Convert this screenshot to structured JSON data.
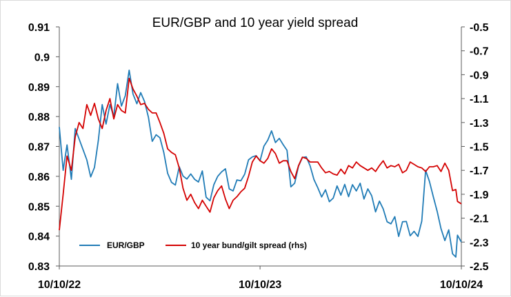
{
  "chart_data": {
    "type": "line",
    "title": "EUR/GBP and 10 year yield spread",
    "xlabel": "",
    "ylabel": "",
    "x_tick_labels": [
      "10/10/22",
      "10/10/23",
      "10/10/24"
    ],
    "x_range": [
      "2022-10-10",
      "2024-10-10"
    ],
    "y_left": {
      "min": 0.83,
      "max": 0.91,
      "ticks": [
        "0.91",
        "0.9",
        "0.89",
        "0.88",
        "0.87",
        "0.86",
        "0.85",
        "0.84",
        "0.83"
      ]
    },
    "y_right": {
      "min": -2.5,
      "max": -0.5,
      "ticks": [
        "-0.5",
        "-0.7",
        "-0.9",
        "-1.1",
        "-1.3",
        "-1.5",
        "-1.7",
        "-1.9",
        "-2.1",
        "-2.3",
        "-2.5"
      ]
    },
    "grid": false,
    "legend_position": "bottom-left",
    "series": [
      {
        "name": "EUR/GBP",
        "axis": "left",
        "color": "#1f7bb6",
        "points": [
          [
            "2022-10-10",
            0.8765
          ],
          [
            "2022-10-17",
            0.862
          ],
          [
            "2022-10-24",
            0.8705
          ],
          [
            "2022-11-01",
            0.859
          ],
          [
            "2022-11-08",
            0.876
          ],
          [
            "2022-11-15",
            0.8725
          ],
          [
            "2022-11-22",
            0.869
          ],
          [
            "2022-11-29",
            0.8655
          ],
          [
            "2022-12-06",
            0.8598
          ],
          [
            "2022-12-13",
            0.863
          ],
          [
            "2022-12-20",
            0.872
          ],
          [
            "2022-12-27",
            0.884
          ],
          [
            "2023-01-03",
            0.8775
          ],
          [
            "2023-01-10",
            0.884
          ],
          [
            "2023-01-17",
            0.88
          ],
          [
            "2023-01-24",
            0.891
          ],
          [
            "2023-01-31",
            0.8835
          ],
          [
            "2023-02-07",
            0.887
          ],
          [
            "2023-02-14",
            0.8955
          ],
          [
            "2023-02-21",
            0.8875
          ],
          [
            "2023-02-28",
            0.8843
          ],
          [
            "2023-03-07",
            0.888
          ],
          [
            "2023-03-14",
            0.885
          ],
          [
            "2023-03-21",
            0.8798
          ],
          [
            "2023-03-28",
            0.8717
          ],
          [
            "2023-04-04",
            0.8739
          ],
          [
            "2023-04-11",
            0.8729
          ],
          [
            "2023-04-18",
            0.868
          ],
          [
            "2023-04-25",
            0.861
          ],
          [
            "2023-05-02",
            0.858
          ],
          [
            "2023-05-09",
            0.8571
          ],
          [
            "2023-05-16",
            0.8632
          ],
          [
            "2023-05-23",
            0.8601
          ],
          [
            "2023-05-30",
            0.8591
          ],
          [
            "2023-06-06",
            0.8608
          ],
          [
            "2023-06-13",
            0.859
          ],
          [
            "2023-06-20",
            0.8581
          ],
          [
            "2023-06-27",
            0.8618
          ],
          [
            "2023-07-04",
            0.853
          ],
          [
            "2023-07-11",
            0.8518
          ],
          [
            "2023-07-18",
            0.8572
          ],
          [
            "2023-07-25",
            0.86
          ],
          [
            "2023-08-01",
            0.8615
          ],
          [
            "2023-08-08",
            0.8625
          ],
          [
            "2023-08-15",
            0.8558
          ],
          [
            "2023-08-22",
            0.8551
          ],
          [
            "2023-08-29",
            0.8588
          ],
          [
            "2023-09-05",
            0.8585
          ],
          [
            "2023-09-12",
            0.8607
          ],
          [
            "2023-09-19",
            0.8655
          ],
          [
            "2023-09-26",
            0.8665
          ],
          [
            "2023-10-03",
            0.8669
          ],
          [
            "2023-10-10",
            0.8652
          ],
          [
            "2023-10-17",
            0.8701
          ],
          [
            "2023-10-24",
            0.8721
          ],
          [
            "2023-10-31",
            0.8752
          ],
          [
            "2023-11-07",
            0.8713
          ],
          [
            "2023-11-14",
            0.8727
          ],
          [
            "2023-11-21",
            0.8706
          ],
          [
            "2023-11-28",
            0.8687
          ],
          [
            "2023-12-05",
            0.8565
          ],
          [
            "2023-12-12",
            0.8577
          ],
          [
            "2023-12-19",
            0.8634
          ],
          [
            "2023-12-26",
            0.8663
          ],
          [
            "2024-01-02",
            0.8665
          ],
          [
            "2024-01-09",
            0.8635
          ],
          [
            "2024-01-16",
            0.8589
          ],
          [
            "2024-01-23",
            0.8562
          ],
          [
            "2024-01-30",
            0.8531
          ],
          [
            "2024-02-06",
            0.8555
          ],
          [
            "2024-02-13",
            0.8515
          ],
          [
            "2024-02-20",
            0.8527
          ],
          [
            "2024-02-27",
            0.8568
          ],
          [
            "2024-03-05",
            0.8537
          ],
          [
            "2024-03-12",
            0.8573
          ],
          [
            "2024-03-19",
            0.8532
          ],
          [
            "2024-03-26",
            0.8572
          ],
          [
            "2024-04-02",
            0.8551
          ],
          [
            "2024-04-09",
            0.8577
          ],
          [
            "2024-04-16",
            0.8524
          ],
          [
            "2024-04-23",
            0.8558
          ],
          [
            "2024-04-30",
            0.8535
          ],
          [
            "2024-05-07",
            0.8481
          ],
          [
            "2024-05-14",
            0.8517
          ],
          [
            "2024-05-21",
            0.8491
          ],
          [
            "2024-05-28",
            0.8448
          ],
          [
            "2024-06-04",
            0.8441
          ],
          [
            "2024-06-11",
            0.8465
          ],
          [
            "2024-06-18",
            0.8399
          ],
          [
            "2024-06-25",
            0.8448
          ],
          [
            "2024-07-02",
            0.8449
          ],
          [
            "2024-07-09",
            0.8401
          ],
          [
            "2024-07-16",
            0.8416
          ],
          [
            "2024-07-23",
            0.8399
          ],
          [
            "2024-07-30",
            0.845
          ],
          [
            "2024-08-06",
            0.862
          ],
          [
            "2024-08-13",
            0.8583
          ],
          [
            "2024-08-20",
            0.8532
          ],
          [
            "2024-08-27",
            0.8483
          ],
          [
            "2024-09-03",
            0.8425
          ],
          [
            "2024-09-10",
            0.8385
          ],
          [
            "2024-09-17",
            0.8421
          ],
          [
            "2024-09-24",
            0.8341
          ],
          [
            "2024-09-30",
            0.833
          ],
          [
            "2024-10-03",
            0.8403
          ],
          [
            "2024-10-10",
            0.838
          ]
        ]
      },
      {
        "name": "10 year bund/gilt spread (rhs)",
        "axis": "right",
        "color": "#d40000",
        "points": [
          [
            "2022-10-10",
            -2.2
          ],
          [
            "2022-10-17",
            -1.9
          ],
          [
            "2022-10-24",
            -1.58
          ],
          [
            "2022-11-01",
            -1.7
          ],
          [
            "2022-11-08",
            -1.42
          ],
          [
            "2022-11-15",
            -1.3
          ],
          [
            "2022-11-22",
            -1.35
          ],
          [
            "2022-11-29",
            -1.15
          ],
          [
            "2022-12-06",
            -1.24
          ],
          [
            "2022-12-13",
            -1.14
          ],
          [
            "2022-12-20",
            -1.27
          ],
          [
            "2022-12-27",
            -1.35
          ],
          [
            "2023-01-03",
            -1.2
          ],
          [
            "2023-01-10",
            -1.1
          ],
          [
            "2023-01-17",
            -1.27
          ],
          [
            "2023-01-24",
            -1.15
          ],
          [
            "2023-01-31",
            -1.2
          ],
          [
            "2023-02-07",
            -1.22
          ],
          [
            "2023-02-14",
            -0.93
          ],
          [
            "2023-02-21",
            -1.02
          ],
          [
            "2023-02-28",
            -1.08
          ],
          [
            "2023-03-07",
            -1.15
          ],
          [
            "2023-03-14",
            -1.14
          ],
          [
            "2023-03-21",
            -1.19
          ],
          [
            "2023-03-28",
            -1.22
          ],
          [
            "2023-04-04",
            -1.22
          ],
          [
            "2023-04-11",
            -1.3
          ],
          [
            "2023-04-18",
            -1.39
          ],
          [
            "2023-04-25",
            -1.52
          ],
          [
            "2023-05-02",
            -1.55
          ],
          [
            "2023-05-09",
            -1.57
          ],
          [
            "2023-05-16",
            -1.68
          ],
          [
            "2023-05-23",
            -1.85
          ],
          [
            "2023-05-30",
            -1.95
          ],
          [
            "2023-06-06",
            -1.9
          ],
          [
            "2023-06-13",
            -1.97
          ],
          [
            "2023-06-20",
            -2.02
          ],
          [
            "2023-06-27",
            -1.95
          ],
          [
            "2023-07-04",
            -2.0
          ],
          [
            "2023-07-11",
            -2.05
          ],
          [
            "2023-07-18",
            -1.93
          ],
          [
            "2023-07-25",
            -1.87
          ],
          [
            "2023-08-01",
            -1.83
          ],
          [
            "2023-08-08",
            -1.94
          ],
          [
            "2023-08-15",
            -2.02
          ],
          [
            "2023-08-22",
            -1.95
          ],
          [
            "2023-08-29",
            -1.92
          ],
          [
            "2023-09-05",
            -1.88
          ],
          [
            "2023-09-12",
            -1.85
          ],
          [
            "2023-09-19",
            -1.75
          ],
          [
            "2023-09-26",
            -1.63
          ],
          [
            "2023-10-03",
            -1.58
          ],
          [
            "2023-10-10",
            -1.62
          ],
          [
            "2023-10-17",
            -1.64
          ],
          [
            "2023-10-24",
            -1.6
          ],
          [
            "2023-10-31",
            -1.52
          ],
          [
            "2023-11-07",
            -1.56
          ],
          [
            "2023-11-14",
            -1.64
          ],
          [
            "2023-11-21",
            -1.62
          ],
          [
            "2023-11-28",
            -1.62
          ],
          [
            "2023-12-05",
            -1.71
          ],
          [
            "2023-12-12",
            -1.77
          ],
          [
            "2023-12-19",
            -1.66
          ],
          [
            "2023-12-26",
            -1.59
          ],
          [
            "2024-01-02",
            -1.6
          ],
          [
            "2024-01-09",
            -1.63
          ],
          [
            "2024-01-16",
            -1.63
          ],
          [
            "2024-01-23",
            -1.63
          ],
          [
            "2024-01-30",
            -1.68
          ],
          [
            "2024-02-06",
            -1.72
          ],
          [
            "2024-02-13",
            -1.71
          ],
          [
            "2024-02-20",
            -1.73
          ],
          [
            "2024-02-27",
            -1.74
          ],
          [
            "2024-03-05",
            -1.69
          ],
          [
            "2024-03-12",
            -1.73
          ],
          [
            "2024-03-19",
            -1.66
          ],
          [
            "2024-03-26",
            -1.68
          ],
          [
            "2024-04-02",
            -1.63
          ],
          [
            "2024-04-09",
            -1.66
          ],
          [
            "2024-04-16",
            -1.68
          ],
          [
            "2024-04-23",
            -1.7
          ],
          [
            "2024-04-30",
            -1.68
          ],
          [
            "2024-05-07",
            -1.71
          ],
          [
            "2024-05-14",
            -1.66
          ],
          [
            "2024-05-21",
            -1.62
          ],
          [
            "2024-05-28",
            -1.68
          ],
          [
            "2024-06-04",
            -1.66
          ],
          [
            "2024-06-11",
            -1.67
          ],
          [
            "2024-06-18",
            -1.65
          ],
          [
            "2024-06-25",
            -1.72
          ],
          [
            "2024-07-02",
            -1.7
          ],
          [
            "2024-07-09",
            -1.63
          ],
          [
            "2024-07-16",
            -1.65
          ],
          [
            "2024-07-23",
            -1.67
          ],
          [
            "2024-07-30",
            -1.68
          ],
          [
            "2024-08-06",
            -1.71
          ],
          [
            "2024-08-13",
            -1.67
          ],
          [
            "2024-08-20",
            -1.67
          ],
          [
            "2024-08-27",
            -1.66
          ],
          [
            "2024-09-03",
            -1.71
          ],
          [
            "2024-09-10",
            -1.64
          ],
          [
            "2024-09-17",
            -1.7
          ],
          [
            "2024-09-24",
            -1.87
          ],
          [
            "2024-09-30",
            -1.86
          ],
          [
            "2024-10-03",
            -1.96
          ],
          [
            "2024-10-10",
            -1.98
          ]
        ]
      }
    ]
  }
}
